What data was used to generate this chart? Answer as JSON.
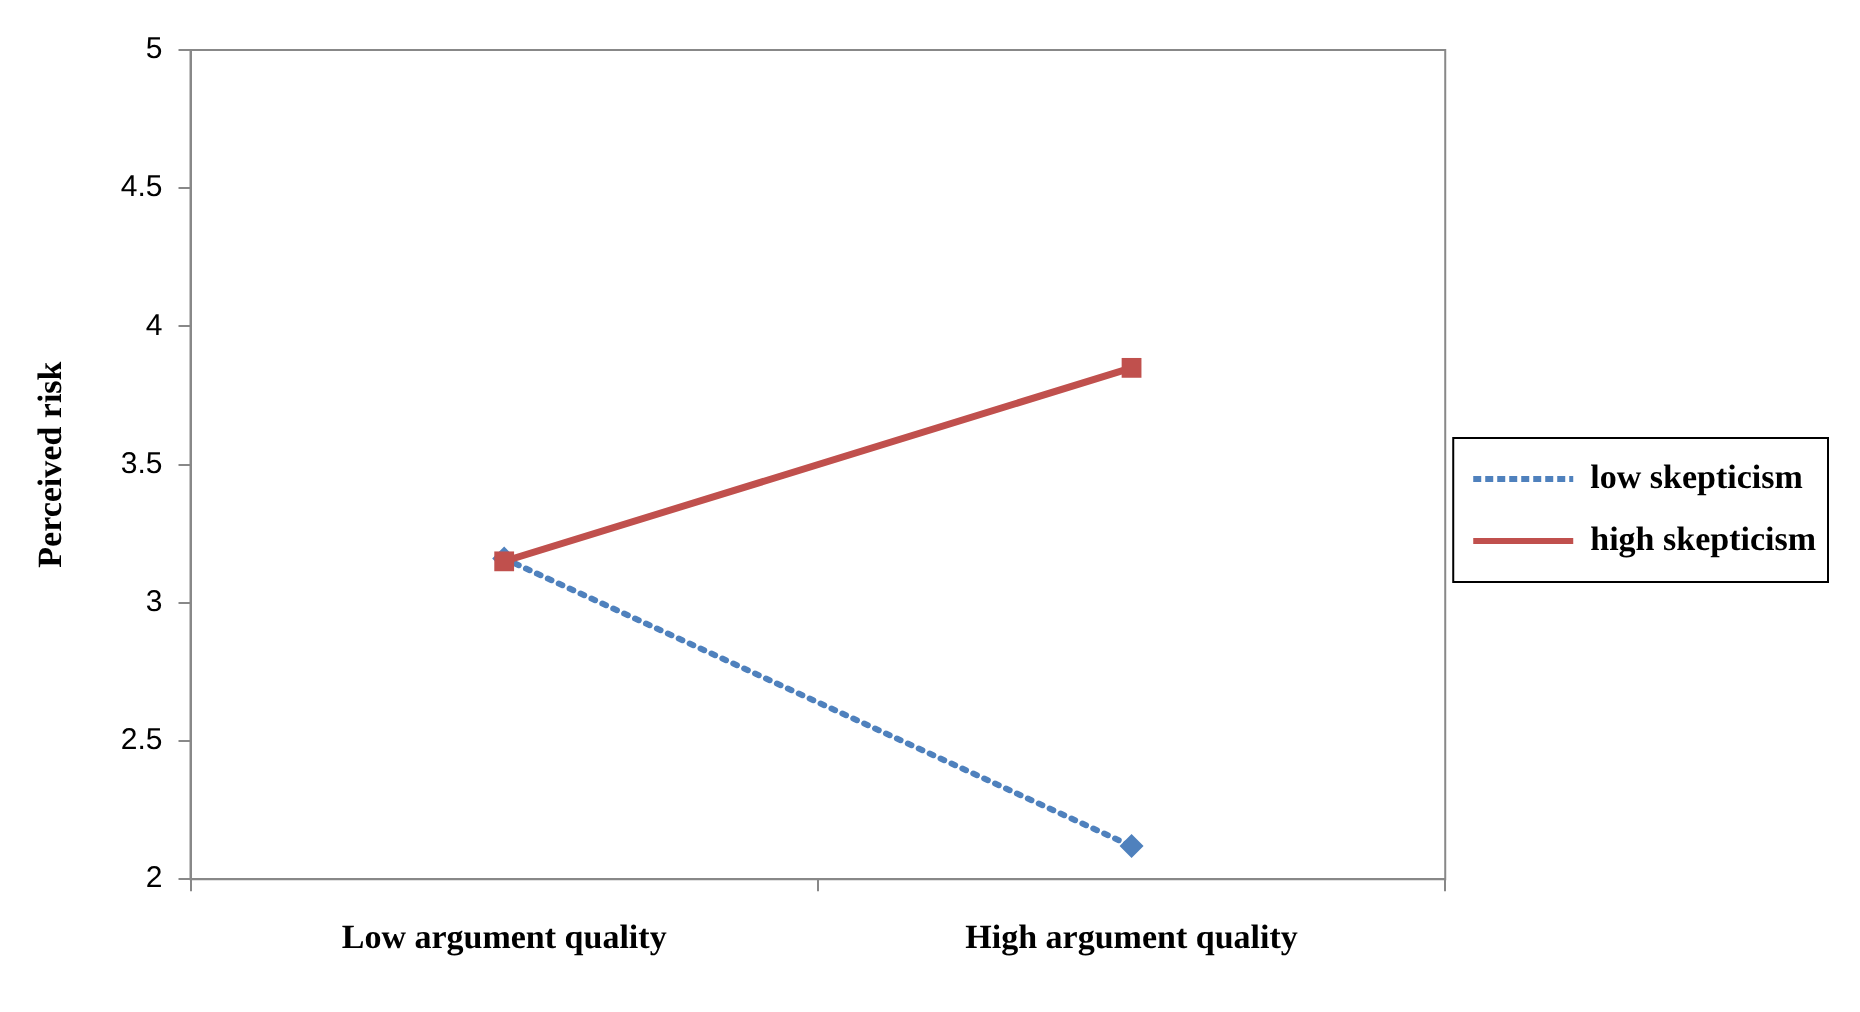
{
  "chart_data": {
    "type": "line",
    "ylabel": "Perceived risk",
    "categories": [
      "Low argument quality",
      "High argument quality"
    ],
    "series": [
      {
        "name": "low skepticism",
        "color": "#4f81bd",
        "values": [
          3.16,
          2.12
        ],
        "marker": "diamond",
        "line_style": "dotted"
      },
      {
        "name": "high skepticism",
        "color": "#c0504d",
        "values": [
          3.15,
          3.85
        ],
        "marker": "square",
        "line_style": "solid"
      }
    ],
    "ylim": [
      2,
      5
    ],
    "yticks": [
      2,
      2.5,
      3,
      3.5,
      4,
      4.5,
      5
    ],
    "grid": false,
    "legend": "right"
  }
}
